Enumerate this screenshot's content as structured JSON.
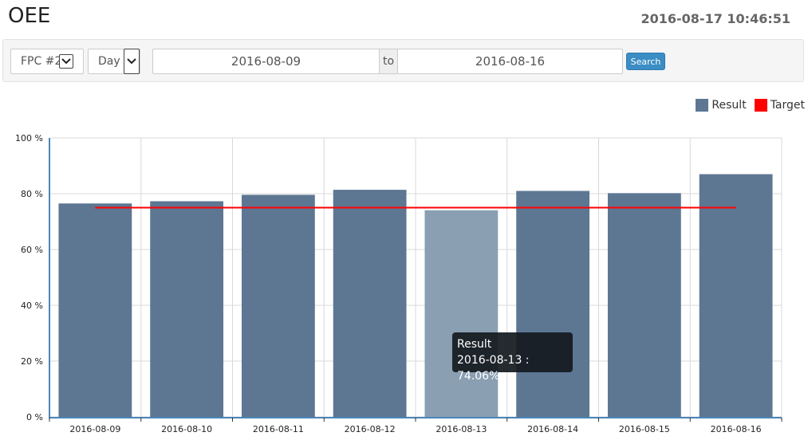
{
  "header": {
    "title": "OEE",
    "datetime": "2016-08-17 10:46:51"
  },
  "filters": {
    "line_value": "FPC #2",
    "period_value": "Day",
    "from_date": "2016-08-09",
    "to_label": "to",
    "to_date": "2016-08-16",
    "search_label": "Search"
  },
  "legend": {
    "result_label": "Result",
    "target_label": "Target"
  },
  "tooltip": {
    "series": "Result",
    "text": "2016-08-13 : 74.06%"
  },
  "colors": {
    "bar": "#5d7793",
    "bar_highlight": "#8a9fb2",
    "target": "#ff0000",
    "axis": "#4a86b8",
    "grid": "#d8d8d8"
  },
  "chart_data": {
    "type": "bar",
    "categories": [
      "2016-08-09",
      "2016-08-10",
      "2016-08-11",
      "2016-08-12",
      "2016-08-13",
      "2016-08-14",
      "2016-08-15",
      "2016-08-16"
    ],
    "series": [
      {
        "name": "Result",
        "values": [
          76.5,
          77.3,
          79.6,
          81.4,
          74.06,
          81.0,
          80.2,
          87.0
        ]
      },
      {
        "name": "Target",
        "values": [
          75,
          75,
          75,
          75,
          75,
          75,
          75,
          75
        ]
      }
    ],
    "highlighted_category": "2016-08-13",
    "yticks": [
      "0 %",
      "20 %",
      "40 %",
      "60 %",
      "80 %",
      "100 %"
    ],
    "ytick_values": [
      0,
      20,
      40,
      60,
      80,
      100
    ],
    "ylim": [
      0,
      100
    ],
    "grid": true,
    "legend_position": "top-right"
  }
}
